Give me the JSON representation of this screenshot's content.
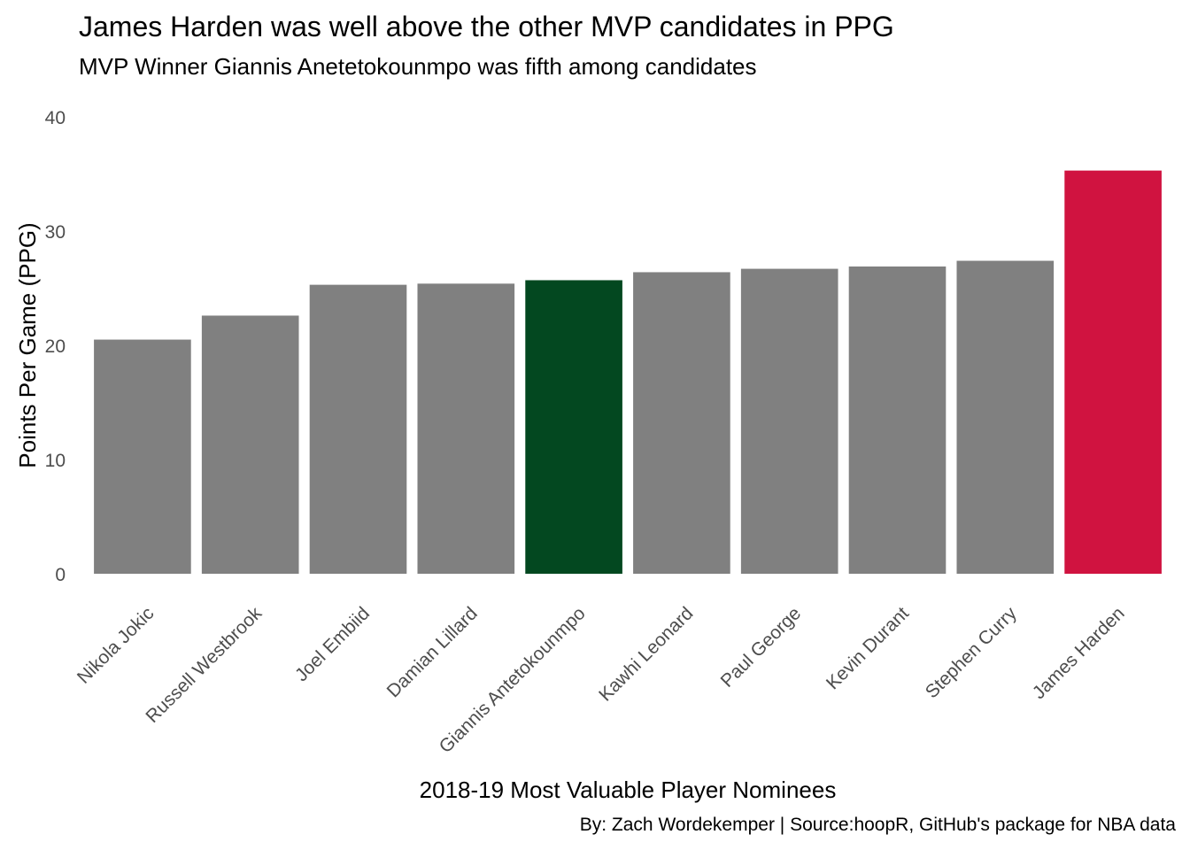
{
  "title": "James Harden was well above the other MVP candidates in PPG",
  "subtitle": "MVP Winner Giannis Anetetokounmpo was fifth among candidates",
  "caption": "By: Zach Wordekemper | Source:hoopR, GitHub's package for NBA data",
  "chart_data": {
    "type": "bar",
    "categories": [
      "Nikola Jokic",
      "Russell Westbrook",
      "Joel Embiid",
      "Damian Lillard",
      "Giannis Antetokounmpo",
      "Kawhi Leonard",
      "Paul George",
      "Kevin Durant",
      "Stephen Curry",
      "James Harden"
    ],
    "values": [
      20.5,
      22.6,
      25.3,
      25.4,
      25.7,
      26.4,
      26.7,
      26.9,
      27.4,
      35.3
    ],
    "bar_colors": [
      "#808080",
      "#808080",
      "#808080",
      "#808080",
      "#034820",
      "#808080",
      "#808080",
      "#808080",
      "#808080",
      "#D01340"
    ],
    "xlabel": "2018-19 Most Valuable Player Nominees",
    "ylabel": "Points Per Game (PPG)",
    "ylim": [
      0,
      40
    ],
    "yticks": [
      0,
      10,
      20,
      30,
      40
    ],
    "grid": false,
    "legend": "none"
  }
}
